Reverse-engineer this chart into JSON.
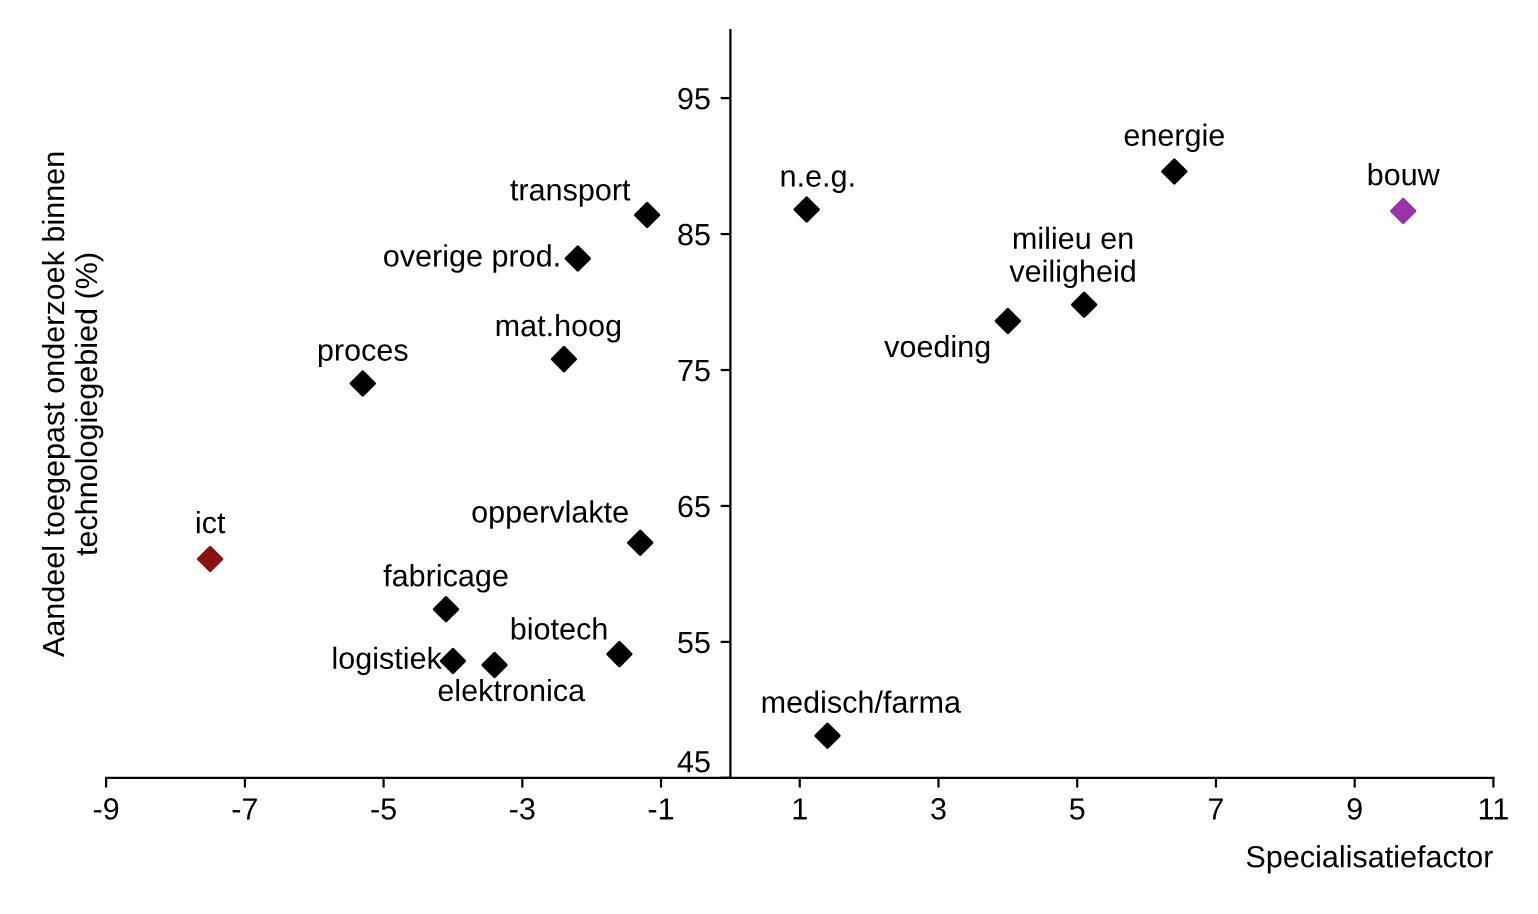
{
  "chart_data": {
    "type": "scatter",
    "xlabel": "Specialisatiefactor",
    "ylabel": "Aandeel toegepast onderzoek binnen\ntechnologiegebied (%)",
    "xlim": [
      -9,
      11
    ],
    "xticks": [
      -9,
      -7,
      -5,
      -3,
      -1,
      1,
      3,
      5,
      7,
      9,
      11
    ],
    "ylim": [
      45,
      100
    ],
    "yticks": [
      45,
      55,
      65,
      75,
      85,
      95
    ],
    "marker": "diamond",
    "grid": false,
    "legend": false,
    "series": [
      {
        "name": "ict",
        "color": "#8b1010",
        "x": [
          -7.5
        ],
        "values": [
          61.1
        ]
      },
      {
        "name": "proces",
        "color": "#000000",
        "x": [
          -5.3
        ],
        "values": [
          74.0
        ]
      },
      {
        "name": "fabricage",
        "color": "#000000",
        "x": [
          -4.1
        ],
        "values": [
          57.4
        ]
      },
      {
        "name": "logistiek",
        "color": "#000000",
        "x": [
          -4.0
        ],
        "values": [
          53.6
        ]
      },
      {
        "name": "elektronica",
        "color": "#000000",
        "x": [
          -3.4
        ],
        "values": [
          53.3
        ]
      },
      {
        "name": "mat.hoog",
        "color": "#000000",
        "x": [
          -2.4
        ],
        "values": [
          75.8
        ]
      },
      {
        "name": "overige prod.",
        "color": "#000000",
        "x": [
          -2.2
        ],
        "values": [
          83.2
        ]
      },
      {
        "name": "transport",
        "color": "#000000",
        "x": [
          -1.2
        ],
        "values": [
          86.4
        ]
      },
      {
        "name": "oppervlakte",
        "color": "#000000",
        "x": [
          -1.3
        ],
        "values": [
          62.3
        ]
      },
      {
        "name": "biotech",
        "color": "#000000",
        "x": [
          -1.6
        ],
        "values": [
          54.1
        ]
      },
      {
        "name": "n.e.g.",
        "color": "#000000",
        "x": [
          1.1
        ],
        "values": [
          86.8
        ]
      },
      {
        "name": "medisch/farma",
        "color": "#000000",
        "x": [
          1.4
        ],
        "values": [
          48.1
        ]
      },
      {
        "name": "voeding",
        "color": "#000000",
        "x": [
          4.0
        ],
        "values": [
          78.6
        ]
      },
      {
        "name": "milieu en\nveiligheid",
        "color": "#000000",
        "x": [
          5.1
        ],
        "values": [
          79.8
        ]
      },
      {
        "name": "energie",
        "color": "#000000",
        "x": [
          6.4
        ],
        "values": [
          89.6
        ]
      },
      {
        "name": "bouw",
        "color": "#9933aa",
        "x": [
          9.7
        ],
        "values": [
          86.7
        ]
      }
    ]
  }
}
